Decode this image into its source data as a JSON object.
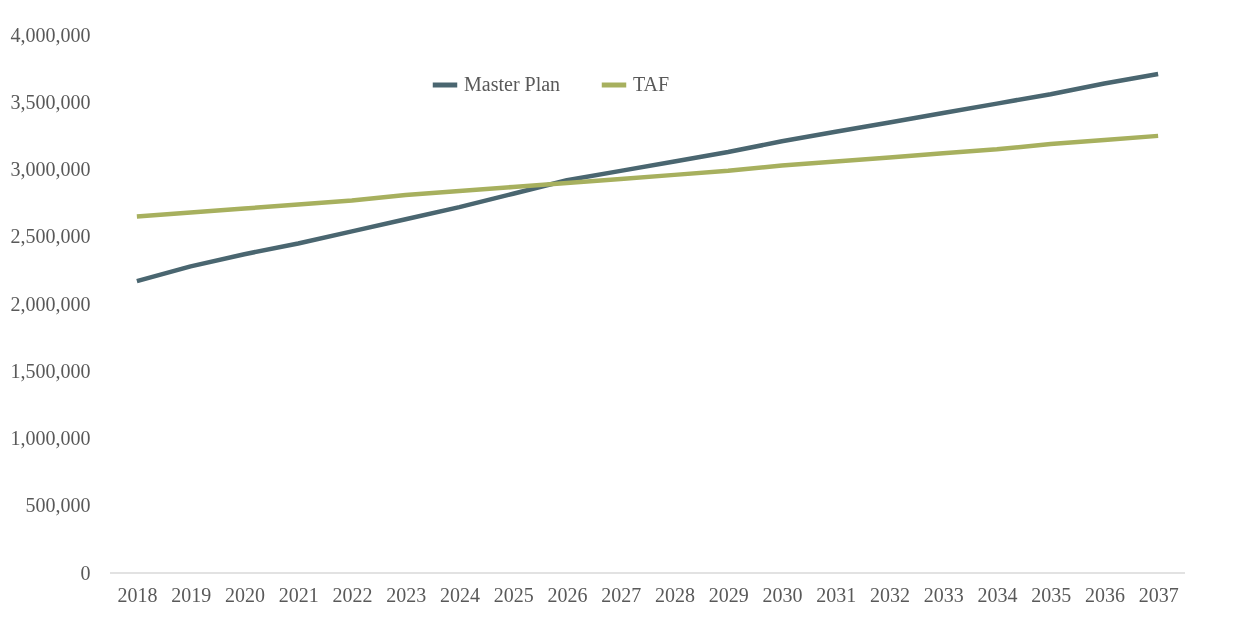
{
  "chart_data": {
    "type": "line",
    "categories": [
      "2018",
      "2019",
      "2020",
      "2021",
      "2022",
      "2023",
      "2024",
      "2025",
      "2026",
      "2027",
      "2028",
      "2029",
      "2030",
      "2031",
      "2032",
      "2033",
      "2034",
      "2035",
      "2036",
      "2037"
    ],
    "series": [
      {
        "name": "Master Plan",
        "color": "#4a6670",
        "values": [
          2170000,
          2280000,
          2370000,
          2450000,
          2540000,
          2630000,
          2720000,
          2820000,
          2920000,
          2990000,
          3060000,
          3130000,
          3210000,
          3280000,
          3350000,
          3420000,
          3490000,
          3560000,
          3640000,
          3710000
        ]
      },
      {
        "name": "TAF",
        "color": "#a7b05e",
        "values": [
          2650000,
          2680000,
          2710000,
          2740000,
          2770000,
          2810000,
          2840000,
          2870000,
          2900000,
          2930000,
          2960000,
          2990000,
          3030000,
          3060000,
          3090000,
          3120000,
          3150000,
          3190000,
          3220000,
          3250000
        ]
      }
    ],
    "ylim": [
      0,
      4000000
    ],
    "yticks": [
      0,
      {
        "value": 500000,
        "label": "500,000"
      },
      {
        "value": 1000000,
        "label": "1,000,000"
      },
      {
        "value": 1500000,
        "label": "1,500,000"
      },
      {
        "value": 2000000,
        "label": "2,000,000"
      },
      {
        "value": 2500000,
        "label": "2,500,000"
      },
      {
        "value": 3000000,
        "label": "3,000,000"
      },
      {
        "value": 3500000,
        "label": "3,500,000"
      },
      {
        "value": 4000000,
        "label": "4,000,000"
      }
    ],
    "grid": false,
    "legend": "top",
    "marker": "none",
    "line_style": "solid"
  }
}
